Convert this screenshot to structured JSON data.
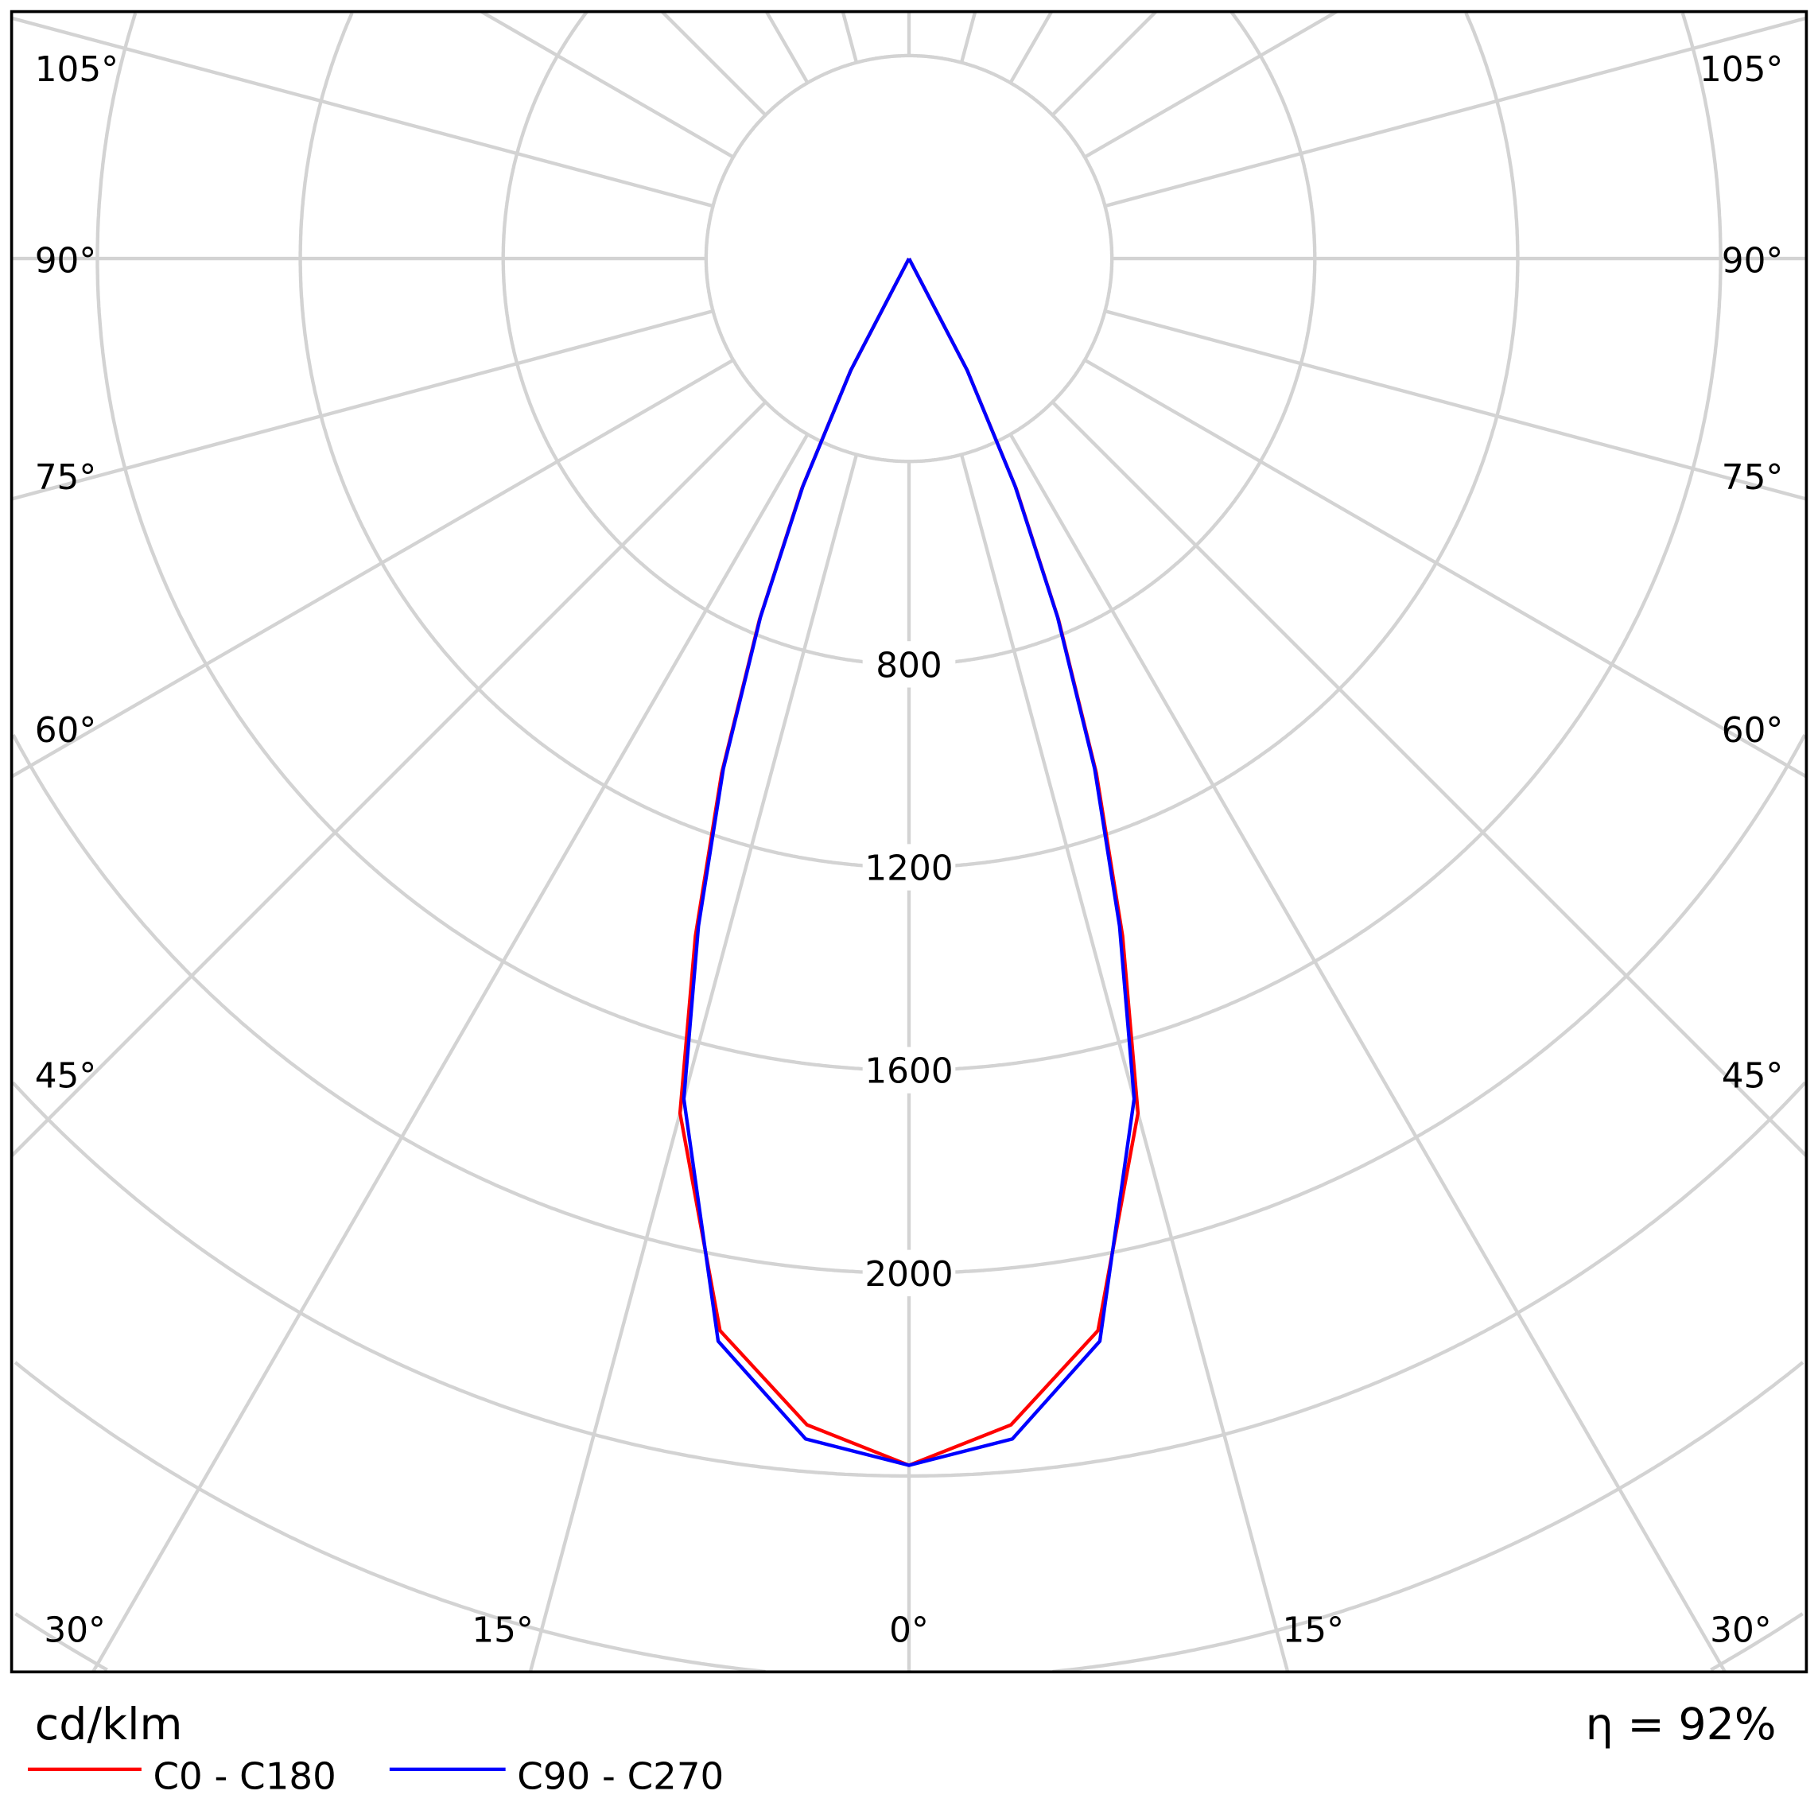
{
  "chart_data": {
    "type": "polar",
    "unit_label": "cd/klm",
    "efficiency_label": "η = 92%",
    "radial_ticks": [
      800,
      1200,
      1600,
      2000
    ],
    "radial_grid_step": 400,
    "angle_grid_step_deg": 15,
    "angle_labels": {
      "left": [
        "105°",
        "90°",
        "75°",
        "60°",
        "45°",
        "30°"
      ],
      "bottom": [
        "30°",
        "15°",
        "0°",
        "15°",
        "30°"
      ],
      "right": [
        "105°",
        "90°",
        "75°",
        "60°",
        "45°",
        "30°"
      ]
    },
    "grid": true,
    "legend_position": "bottom-left",
    "angles_deg": [
      0,
      5,
      10,
      15,
      17.5,
      20,
      22.5,
      25,
      27.5,
      30
    ],
    "series": [
      {
        "name": "C0 - C180",
        "color": "#ff0000",
        "values": [
          2379,
          2308,
          2146,
          1744,
          1400,
          1080,
          770,
          500,
          250,
          0
        ]
      },
      {
        "name": "C90 - C270",
        "color": "#0000ff",
        "values": [
          2379,
          2336,
          2167,
          1715,
          1380,
          1070,
          765,
          495,
          248,
          0
        ]
      }
    ]
  }
}
